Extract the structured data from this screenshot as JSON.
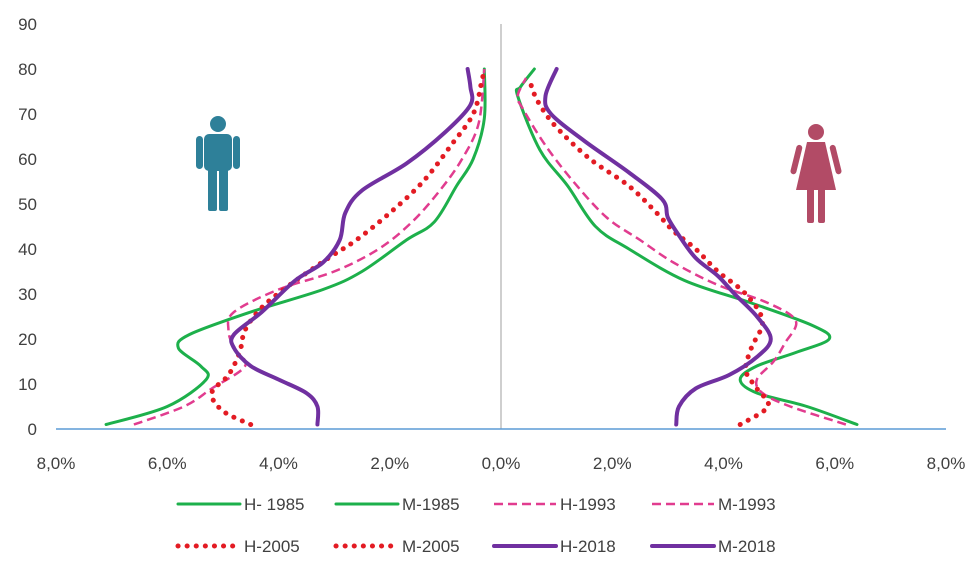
{
  "chart_data": {
    "type": "line",
    "title": "",
    "xlabel": "",
    "ylabel": "",
    "x_axis": {
      "min": -8,
      "max": 8,
      "ticks": [
        -8,
        -6,
        -4,
        -2,
        0,
        2,
        4,
        6,
        8
      ],
      "tick_labels": [
        "8,0%",
        "6,0%",
        "4,0%",
        "2,0%",
        "0,0%",
        "2,0%",
        "4,0%",
        "6,0%",
        "8,0%"
      ]
    },
    "y_axis": {
      "min": 0,
      "max": 90,
      "ticks": [
        0,
        10,
        20,
        30,
        40,
        50,
        60,
        70,
        80,
        90
      ],
      "tick_labels": [
        "0",
        "10",
        "20",
        "30",
        "40",
        "50",
        "60",
        "70",
        "80",
        "90"
      ]
    },
    "legend_position": "bottom",
    "icons": [
      {
        "name": "male-figure-icon",
        "color": "#2E8099",
        "side": "left"
      },
      {
        "name": "female-figure-icon",
        "color": "#B24B66",
        "side": "right"
      }
    ],
    "series": [
      {
        "name": "H- 1985",
        "color": "#1DB04B",
        "style": "solid",
        "side": "left",
        "points": [
          [
            -7.1,
            1
          ],
          [
            -6.0,
            5
          ],
          [
            -5.3,
            11
          ],
          [
            -5.4,
            14
          ],
          [
            -5.8,
            18
          ],
          [
            -5.6,
            21
          ],
          [
            -4.5,
            26
          ],
          [
            -3.2,
            31
          ],
          [
            -2.5,
            35
          ],
          [
            -1.7,
            42
          ],
          [
            -1.2,
            46
          ],
          [
            -0.8,
            54
          ],
          [
            -0.5,
            60
          ],
          [
            -0.3,
            69
          ],
          [
            -0.3,
            80
          ]
        ]
      },
      {
        "name": "M-1985",
        "color": "#1DB04B",
        "style": "solid",
        "side": "right",
        "points": [
          [
            6.4,
            1
          ],
          [
            5.5,
            5
          ],
          [
            4.6,
            8
          ],
          [
            4.3,
            11
          ],
          [
            4.6,
            14
          ],
          [
            5.3,
            17
          ],
          [
            5.9,
            20
          ],
          [
            5.6,
            23
          ],
          [
            4.5,
            28
          ],
          [
            3.3,
            33
          ],
          [
            2.3,
            40
          ],
          [
            1.7,
            45
          ],
          [
            1.2,
            54
          ],
          [
            0.7,
            62
          ],
          [
            0.3,
            74
          ],
          [
            0.35,
            76
          ],
          [
            0.6,
            80
          ]
        ]
      },
      {
        "name": "H-1993",
        "color": "#E13C8F",
        "style": "dashed",
        "side": "left",
        "points": [
          [
            -6.6,
            1
          ],
          [
            -5.7,
            5
          ],
          [
            -5.2,
            9
          ],
          [
            -4.6,
            14
          ],
          [
            -4.8,
            18
          ],
          [
            -4.9,
            22
          ],
          [
            -4.8,
            26
          ],
          [
            -4.0,
            31
          ],
          [
            -3.0,
            35
          ],
          [
            -2.2,
            40
          ],
          [
            -1.6,
            46
          ],
          [
            -1.1,
            53
          ],
          [
            -0.7,
            60
          ],
          [
            -0.4,
            68
          ],
          [
            -0.3,
            80
          ]
        ]
      },
      {
        "name": "M-1993",
        "color": "#E13C8F",
        "style": "dashed",
        "side": "right",
        "points": [
          [
            6.2,
            1
          ],
          [
            5.2,
            5
          ],
          [
            4.7,
            8
          ],
          [
            4.6,
            11
          ],
          [
            4.9,
            15
          ],
          [
            5.1,
            19
          ],
          [
            5.3,
            24
          ],
          [
            4.8,
            28
          ],
          [
            3.9,
            32
          ],
          [
            3.1,
            37
          ],
          [
            2.5,
            42
          ],
          [
            1.9,
            47
          ],
          [
            1.3,
            55
          ],
          [
            0.8,
            63
          ],
          [
            0.4,
            71
          ],
          [
            0.3,
            74
          ],
          [
            0.45,
            78
          ]
        ]
      },
      {
        "name": "H-2005",
        "color": "#E31B23",
        "style": "dotted",
        "side": "left",
        "points": [
          [
            -4.5,
            1
          ],
          [
            -5.0,
            4
          ],
          [
            -5.2,
            8
          ],
          [
            -4.9,
            12
          ],
          [
            -4.7,
            17
          ],
          [
            -4.6,
            22
          ],
          [
            -4.3,
            27
          ],
          [
            -3.8,
            32
          ],
          [
            -3.1,
            38
          ],
          [
            -2.6,
            42
          ],
          [
            -2.0,
            48
          ],
          [
            -1.4,
            55
          ],
          [
            -0.9,
            63
          ],
          [
            -0.5,
            70
          ],
          [
            -0.35,
            77
          ],
          [
            -0.3,
            80
          ]
        ]
      },
      {
        "name": "M-2005",
        "color": "#E31B23",
        "style": "dotted",
        "side": "right",
        "points": [
          [
            4.3,
            1
          ],
          [
            4.8,
            5
          ],
          [
            4.6,
            9
          ],
          [
            4.4,
            13
          ],
          [
            4.5,
            18
          ],
          [
            4.7,
            24
          ],
          [
            4.4,
            30
          ],
          [
            3.9,
            35
          ],
          [
            3.5,
            40
          ],
          [
            3.1,
            44
          ],
          [
            2.8,
            48
          ],
          [
            2.3,
            54
          ],
          [
            1.6,
            60
          ],
          [
            1.0,
            67
          ],
          [
            0.7,
            72
          ],
          [
            0.55,
            76
          ],
          [
            0.55,
            78
          ]
        ]
      },
      {
        "name": "H-2018",
        "color": "#7030A0",
        "style": "solid",
        "side": "left",
        "points": [
          [
            -3.3,
            1
          ],
          [
            -3.3,
            5
          ],
          [
            -3.5,
            8
          ],
          [
            -4.0,
            11
          ],
          [
            -4.5,
            14
          ],
          [
            -4.8,
            18
          ],
          [
            -4.8,
            21
          ],
          [
            -4.3,
            26
          ],
          [
            -3.7,
            33
          ],
          [
            -3.2,
            37
          ],
          [
            -2.9,
            42
          ],
          [
            -2.8,
            48
          ],
          [
            -2.5,
            53
          ],
          [
            -1.7,
            59
          ],
          [
            -1.0,
            66
          ],
          [
            -0.55,
            72
          ],
          [
            -0.55,
            76
          ],
          [
            -0.6,
            80
          ]
        ]
      },
      {
        "name": "M-2018",
        "color": "#7030A0",
        "style": "solid",
        "side": "right",
        "points": [
          [
            3.15,
            1
          ],
          [
            3.2,
            5
          ],
          [
            3.5,
            9
          ],
          [
            4.1,
            12
          ],
          [
            4.6,
            16
          ],
          [
            4.85,
            20
          ],
          [
            4.6,
            25
          ],
          [
            4.2,
            30
          ],
          [
            3.9,
            34
          ],
          [
            3.5,
            38
          ],
          [
            3.2,
            43
          ],
          [
            3.0,
            47
          ],
          [
            2.9,
            51
          ],
          [
            2.3,
            57
          ],
          [
            1.5,
            64
          ],
          [
            0.9,
            70
          ],
          [
            0.8,
            74
          ],
          [
            1.0,
            80
          ]
        ]
      }
    ]
  }
}
